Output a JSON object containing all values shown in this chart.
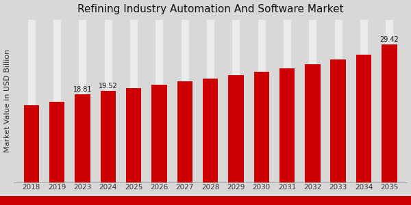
{
  "title": "Refining Industry Automation And Software Market",
  "ylabel": "Market Value in USD Billion",
  "categories": [
    "2018",
    "2019",
    "2023",
    "2024",
    "2025",
    "2026",
    "2027",
    "2028",
    "2029",
    "2030",
    "2031",
    "2032",
    "2033",
    "2034",
    "2035"
  ],
  "values": [
    16.5,
    17.1,
    18.81,
    19.52,
    20.1,
    20.8,
    21.5,
    22.1,
    22.8,
    23.6,
    24.3,
    25.2,
    26.2,
    27.3,
    29.42
  ],
  "bar_color": "#cc0000",
  "annotated": {
    "2023": "18.81",
    "2024": "19.52",
    "2035": "29.42"
  },
  "bg_color_left": "#dcdcdc",
  "bg_color_right": "#c8c8c8",
  "title_fontsize": 11,
  "ylabel_fontsize": 8,
  "tick_fontsize": 7.5,
  "annot_fontsize": 7,
  "bottom_stripe_color": "#cc0000",
  "grid_color": "#ffffff",
  "bar_width": 0.6
}
